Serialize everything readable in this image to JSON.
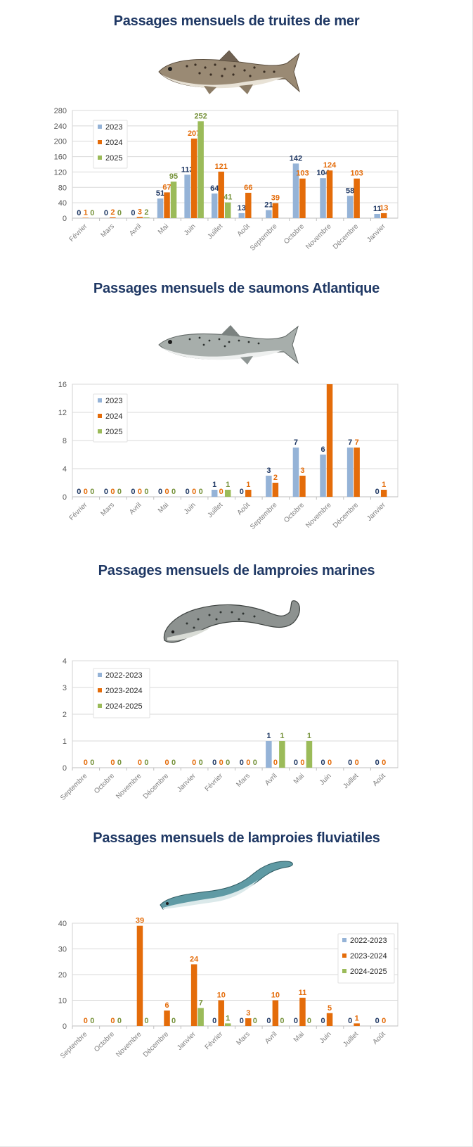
{
  "colors": {
    "series1": "#95b3d7",
    "series2": "#e46c0a",
    "series3": "#9bbb59",
    "title": "#1f3864",
    "label1": "#1f3864",
    "label2": "#e46c0a",
    "label3": "#77933c",
    "axis_text": "#595959",
    "grid": "#d9d9d9"
  },
  "sections": [
    {
      "title": "Passages mensuels de truites de mer",
      "image_icon": "sea-trout-illustration"
    },
    {
      "title": "Passages mensuels de saumons Atlantique",
      "image_icon": "atlantic-salmon-illustration"
    },
    {
      "title": "Passages mensuels de lamproies marines",
      "image_icon": "sea-lamprey-illustration"
    },
    {
      "title": "Passages mensuels de lamproies fluviatiles",
      "image_icon": "river-lamprey-illustration"
    }
  ],
  "chart_data": [
    {
      "type": "bar",
      "title": "",
      "categories": [
        "Février",
        "Mars",
        "Avril",
        "Mai",
        "Juin",
        "Juillet",
        "Août",
        "Septembre",
        "Octobre",
        "Novembre",
        "Décembre",
        "Janvier"
      ],
      "series": [
        {
          "name": "2023",
          "values": [
            0,
            0,
            0,
            51,
            113,
            64,
            13,
            21,
            142,
            104,
            58,
            11
          ]
        },
        {
          "name": "2024",
          "values": [
            1,
            2,
            3,
            67,
            207,
            121,
            66,
            39,
            103,
            124,
            103,
            13
          ]
        },
        {
          "name": "2025",
          "values": [
            0,
            0,
            2,
            95,
            252,
            41,
            null,
            null,
            null,
            null,
            null,
            null
          ]
        }
      ],
      "yticks": [
        0,
        40,
        80,
        120,
        160,
        200,
        240,
        280
      ],
      "ylim": [
        0,
        280
      ],
      "grid": true,
      "legend": "top-left"
    },
    {
      "type": "bar",
      "title": "",
      "categories": [
        "Février",
        "Mars",
        "Avril",
        "Mai",
        "Juin",
        "Juillet",
        "Août",
        "Septembre",
        "Octobre",
        "Novembre",
        "Décembre",
        "Janvier"
      ],
      "series": [
        {
          "name": "2023",
          "values": [
            0,
            0,
            0,
            0,
            0,
            1,
            0,
            3,
            7,
            6,
            7,
            0
          ]
        },
        {
          "name": "2024",
          "values": [
            0,
            0,
            0,
            0,
            0,
            0,
            1,
            2,
            3,
            16,
            7,
            1
          ],
          "labels": [
            "0",
            "0",
            "0",
            "0",
            "0",
            "0",
            "1",
            "2",
            "3",
            "",
            "7",
            "1"
          ]
        },
        {
          "name": "2025",
          "values": [
            0,
            0,
            0,
            0,
            0,
            1,
            null,
            null,
            null,
            null,
            null,
            null
          ]
        }
      ],
      "yticks": [
        0,
        4,
        8,
        12,
        16
      ],
      "ylim": [
        0,
        16
      ],
      "grid": true,
      "legend": "top-left"
    },
    {
      "type": "bar",
      "title": "",
      "categories": [
        "Septembre",
        "Octobre",
        "Novembre",
        "Décembre",
        "Janvier",
        "Février",
        "Mars",
        "Avril",
        "Mai",
        "Juin",
        "Juillet",
        "Août"
      ],
      "series": [
        {
          "name": "2022-2023",
          "values": [
            null,
            null,
            null,
            null,
            null,
            0,
            0,
            1,
            0,
            0,
            0,
            0
          ]
        },
        {
          "name": "2023-2024",
          "values": [
            0,
            0,
            0,
            0,
            0,
            0,
            0,
            0,
            0,
            0,
            0,
            0
          ]
        },
        {
          "name": "2024-2025",
          "values": [
            0,
            0,
            0,
            0,
            0,
            0,
            0,
            1,
            1,
            null,
            null,
            null
          ]
        }
      ],
      "yticks": [
        0,
        1,
        2,
        3,
        4
      ],
      "ylim": [
        0,
        4
      ],
      "grid": true,
      "legend": "top-left"
    },
    {
      "type": "bar",
      "title": "",
      "categories": [
        "Septembre",
        "Octobre",
        "Novembre",
        "Décembre",
        "Janvier",
        "Février",
        "Mars",
        "Avril",
        "Mai",
        "Juin",
        "Juillet",
        "Août"
      ],
      "series": [
        {
          "name": "2022-2023",
          "values": [
            null,
            null,
            null,
            null,
            null,
            0,
            0,
            0,
            0,
            0,
            0,
            0
          ]
        },
        {
          "name": "2023-2024",
          "values": [
            0,
            0,
            39,
            6,
            24,
            10,
            3,
            10,
            11,
            5,
            1,
            0
          ]
        },
        {
          "name": "2024-2025",
          "values": [
            0,
            0,
            0,
            0,
            7,
            1,
            0,
            0,
            0,
            null,
            null,
            null
          ]
        }
      ],
      "yticks": [
        0,
        10,
        20,
        30,
        40
      ],
      "ylim": [
        0,
        40
      ],
      "grid": true,
      "legend": "right"
    }
  ]
}
